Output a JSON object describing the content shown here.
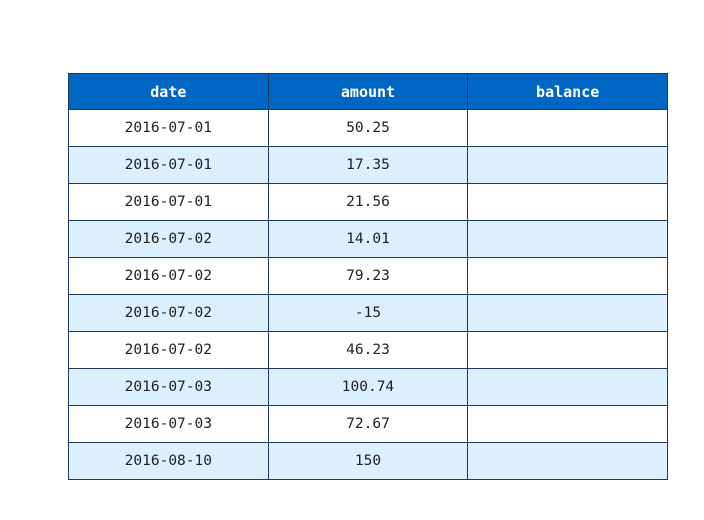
{
  "chart_data": {
    "type": "table",
    "columns": [
      "date",
      "amount",
      "balance"
    ],
    "rows": [
      [
        "2016-07-01",
        "50.25",
        ""
      ],
      [
        "2016-07-01",
        "17.35",
        ""
      ],
      [
        "2016-07-01",
        "21.56",
        ""
      ],
      [
        "2016-07-02",
        "14.01",
        ""
      ],
      [
        "2016-07-02",
        "79.23",
        ""
      ],
      [
        "2016-07-02",
        "-15",
        ""
      ],
      [
        "2016-07-02",
        "46.23",
        ""
      ],
      [
        "2016-07-03",
        "100.74",
        ""
      ],
      [
        "2016-07-03",
        "72.67",
        ""
      ],
      [
        "2016-08-10",
        "150",
        ""
      ]
    ]
  },
  "colors": {
    "header_bg": "#0066c4",
    "header_text": "#ffffff",
    "row_alt_bg": "#dcefff",
    "row_bg": "#ffffff",
    "border": "#1f3a5f"
  }
}
